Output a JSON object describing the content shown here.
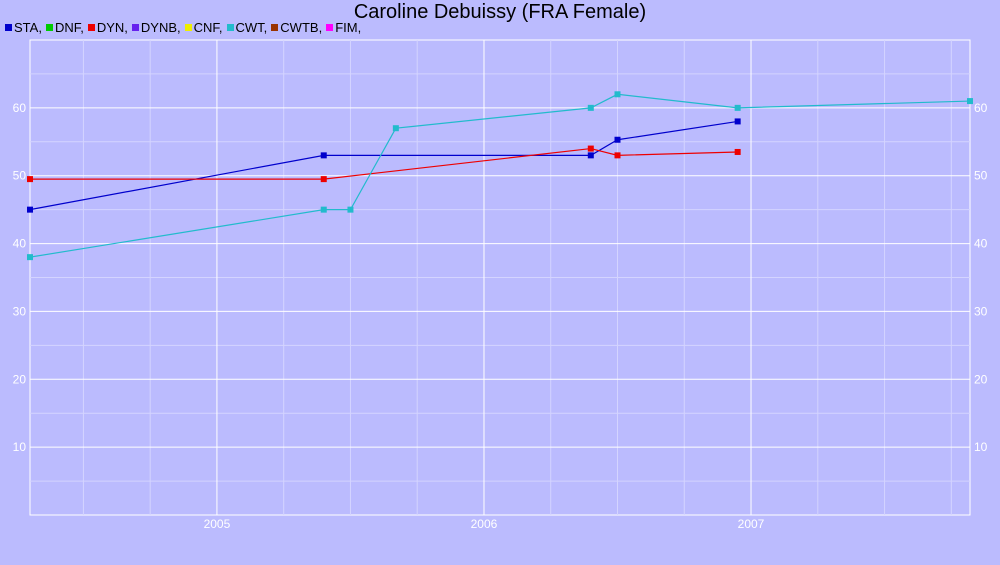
{
  "title": "Caroline Debuissy (FRA Female)",
  "legend": [
    {
      "label": "STA,",
      "color": "#0000cc"
    },
    {
      "label": "DNF,",
      "color": "#00cc00"
    },
    {
      "label": "DYN,",
      "color": "#ee0000"
    },
    {
      "label": "DYNB,",
      "color": "#6622ee"
    },
    {
      "label": "CNF,",
      "color": "#eeee00"
    },
    {
      "label": "CWT,",
      "color": "#22bbcc"
    },
    {
      "label": "CWTB,",
      "color": "#993300"
    },
    {
      "label": "FIM,",
      "color": "#ff00ff"
    }
  ],
  "chart_data": {
    "type": "line",
    "title": "Caroline Debuissy (FRA Female)",
    "xlabel": "",
    "ylabel": "",
    "xlim": [
      2004.3,
      2007.82
    ],
    "ylim": [
      0,
      70
    ],
    "x_ticks": [
      2005,
      2006,
      2007
    ],
    "y_ticks": [
      10,
      20,
      30,
      40,
      50,
      60
    ],
    "grid": true,
    "legend_position": "top-left",
    "series": [
      {
        "name": "STA",
        "color": "#0000cc",
        "points": [
          [
            2004.3,
            45
          ],
          [
            2005.4,
            53
          ],
          [
            2006.4,
            53
          ],
          [
            2006.5,
            55.3
          ],
          [
            2006.95,
            58
          ]
        ]
      },
      {
        "name": "DYN",
        "color": "#ee0000",
        "points": [
          [
            2004.3,
            49.5
          ],
          [
            2005.4,
            49.5
          ],
          [
            2006.4,
            54
          ],
          [
            2006.5,
            53
          ],
          [
            2006.95,
            53.5
          ]
        ]
      },
      {
        "name": "CWT",
        "color": "#22bbcc",
        "points": [
          [
            2004.3,
            38
          ],
          [
            2005.4,
            45
          ],
          [
            2005.5,
            45
          ],
          [
            2005.67,
            57
          ],
          [
            2006.4,
            60
          ],
          [
            2006.5,
            62
          ],
          [
            2006.95,
            60
          ],
          [
            2007.82,
            61
          ]
        ]
      }
    ]
  }
}
